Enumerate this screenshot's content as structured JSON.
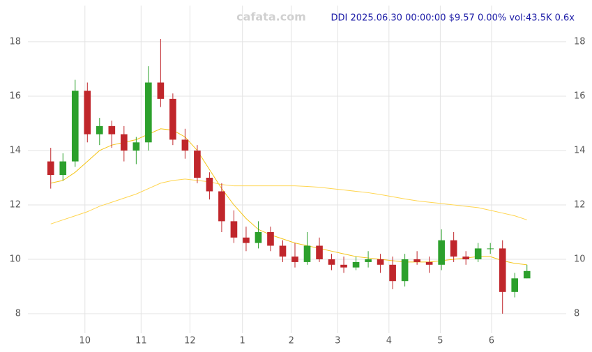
{
  "chart_data": {
    "type": "candlestick",
    "title": "DDI 2025.06.30 00:00:00 $9.57 0.00% vol:43.5K 0.6x",
    "watermark": "cafata.com",
    "up_color": "#2ca02c",
    "down_color": "#c0262b",
    "xlim": [
      -0.5,
      40.5
    ],
    "xticks": [
      {
        "value": 2.8,
        "label": "10"
      },
      {
        "value": 7.4,
        "label": "11"
      },
      {
        "value": 11.4,
        "label": "12"
      },
      {
        "value": 15.7,
        "label": "1"
      },
      {
        "value": 19.7,
        "label": "2"
      },
      {
        "value": 23.5,
        "label": "3"
      },
      {
        "value": 27.7,
        "label": "4"
      },
      {
        "value": 31.9,
        "label": "5"
      },
      {
        "value": 36.1,
        "label": "6"
      }
    ],
    "ylim": [
      7.36,
      19.28
    ],
    "yticks": [
      8,
      10,
      12,
      14,
      16,
      18
    ],
    "grid": true,
    "open": [
      13.6,
      13.1,
      13.6,
      16.2,
      14.6,
      14.9,
      14.6,
      14.0,
      14.3,
      16.5,
      15.9,
      14.4,
      14.0,
      13.0,
      12.5,
      11.4,
      10.8,
      10.6,
      11.0,
      10.5,
      10.1,
      9.9,
      10.5,
      10.0,
      9.8,
      9.7,
      9.9,
      10.0,
      9.8,
      9.2,
      10.0,
      9.9,
      9.8,
      10.7,
      10.1,
      10.0,
      10.4,
      10.4,
      8.8,
      9.3
    ],
    "high": [
      14.1,
      13.9,
      16.6,
      16.5,
      15.2,
      15.1,
      14.9,
      14.5,
      17.1,
      18.1,
      16.1,
      14.8,
      14.2,
      13.2,
      12.8,
      11.8,
      11.2,
      11.4,
      11.2,
      10.7,
      10.6,
      11.0,
      10.8,
      10.2,
      10.1,
      10.1,
      10.3,
      10.2,
      10.1,
      10.2,
      10.3,
      10.1,
      11.1,
      11.0,
      10.3,
      10.6,
      10.6,
      10.7,
      9.5,
      9.8
    ],
    "low": [
      12.6,
      12.9,
      13.4,
      14.3,
      14.2,
      14.1,
      13.6,
      13.5,
      14.0,
      15.6,
      14.2,
      13.7,
      12.8,
      12.2,
      11.0,
      10.6,
      10.3,
      10.4,
      10.3,
      9.9,
      9.7,
      9.8,
      9.9,
      9.6,
      9.5,
      9.6,
      9.7,
      9.5,
      8.9,
      9.0,
      9.8,
      9.5,
      9.6,
      9.9,
      9.8,
      9.9,
      10.2,
      8.0,
      8.6,
      9.3
    ],
    "close": [
      13.1,
      13.6,
      16.2,
      14.6,
      14.9,
      14.6,
      14.0,
      14.3,
      16.5,
      15.9,
      14.4,
      14.0,
      13.0,
      12.5,
      11.4,
      10.8,
      10.6,
      11.0,
      10.5,
      10.1,
      9.9,
      10.5,
      10.0,
      9.8,
      9.7,
      9.9,
      10.0,
      9.8,
      9.2,
      10.0,
      9.9,
      9.8,
      10.7,
      10.1,
      10.0,
      10.4,
      10.4,
      8.8,
      9.3,
      9.57
    ],
    "lines": [
      {
        "color": "#f5c518",
        "values": [
          12.8,
          12.9,
          13.2,
          13.6,
          14.0,
          14.2,
          14.3,
          14.4,
          14.6,
          14.8,
          14.75,
          14.5,
          14.0,
          13.3,
          12.6,
          12.0,
          11.5,
          11.1,
          10.9,
          10.75,
          10.6,
          10.5,
          10.4,
          10.3,
          10.2,
          10.1,
          10.05,
          10.0,
          9.95,
          9.9,
          9.9,
          9.9,
          9.95,
          10.0,
          10.05,
          10.1,
          10.1,
          9.95,
          9.85,
          9.8
        ]
      },
      {
        "color": "#ffd54f",
        "values": [
          11.3,
          11.45,
          11.6,
          11.75,
          11.95,
          12.1,
          12.25,
          12.4,
          12.6,
          12.8,
          12.9,
          12.95,
          12.9,
          12.85,
          12.75,
          12.7,
          12.7,
          12.7,
          12.7,
          12.7,
          12.7,
          12.68,
          12.65,
          12.6,
          12.55,
          12.5,
          12.45,
          12.38,
          12.3,
          12.22,
          12.15,
          12.1,
          12.05,
          12.0,
          11.95,
          11.9,
          11.8,
          11.7,
          11.6,
          11.45
        ]
      }
    ]
  }
}
